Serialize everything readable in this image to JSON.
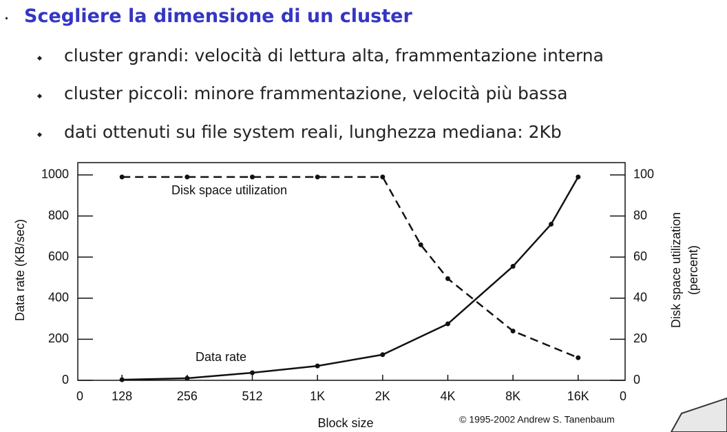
{
  "slide": {
    "title": "Scegliere la dimensione di un cluster",
    "bullets": [
      "cluster grandi: velocità di lettura alta, frammentazione interna",
      "cluster piccoli: minore frammentazione, velocità più bassa",
      "dati ottenuti su file system reali, lunghezza mediana: 2Kb"
    ]
  },
  "chart_data": {
    "type": "line",
    "xlabel": "Block size",
    "ylabel": "Data rate (KB/sec)",
    "y2label": [
      "Disk space utilization",
      "(percent)"
    ],
    "source": "© 1995-2002 Andrew S. Tanenbaum",
    "x_extra_labels": [
      "0",
      "0"
    ],
    "xscale": "log",
    "xlim": [
      80,
      27000
    ],
    "xticks": [
      128,
      256,
      512,
      {
        "value": 1024,
        "label": "1K"
      },
      {
        "value": 2048,
        "label": "2K"
      },
      {
        "value": 4096,
        "label": "4K"
      },
      {
        "value": 8192,
        "label": "8K"
      },
      {
        "value": 16384,
        "label": "16K"
      }
    ],
    "ylim": [
      0,
      1060
    ],
    "yticks": [
      0,
      200,
      400,
      600,
      800,
      1000
    ],
    "y2lim": [
      0,
      106
    ],
    "y2ticks": [
      0,
      20,
      40,
      60,
      80,
      100
    ],
    "series": [
      {
        "name": "Disk space utilization",
        "color": "#111111",
        "dash": true,
        "axis": "y2",
        "x": [
          128,
          256,
          512,
          1024,
          2048,
          3072,
          4096,
          8192,
          16384
        ],
        "values": [
          99,
          99,
          99,
          99,
          99,
          66,
          49.5,
          24,
          11
        ]
      },
      {
        "name": "Data rate",
        "color": "#111111",
        "dash": false,
        "x": [
          128,
          256,
          512,
          1024,
          2048,
          4096,
          8192,
          12288,
          16384
        ],
        "values": [
          3,
          10,
          37,
          70,
          125,
          275,
          555,
          760,
          990
        ]
      }
    ]
  }
}
